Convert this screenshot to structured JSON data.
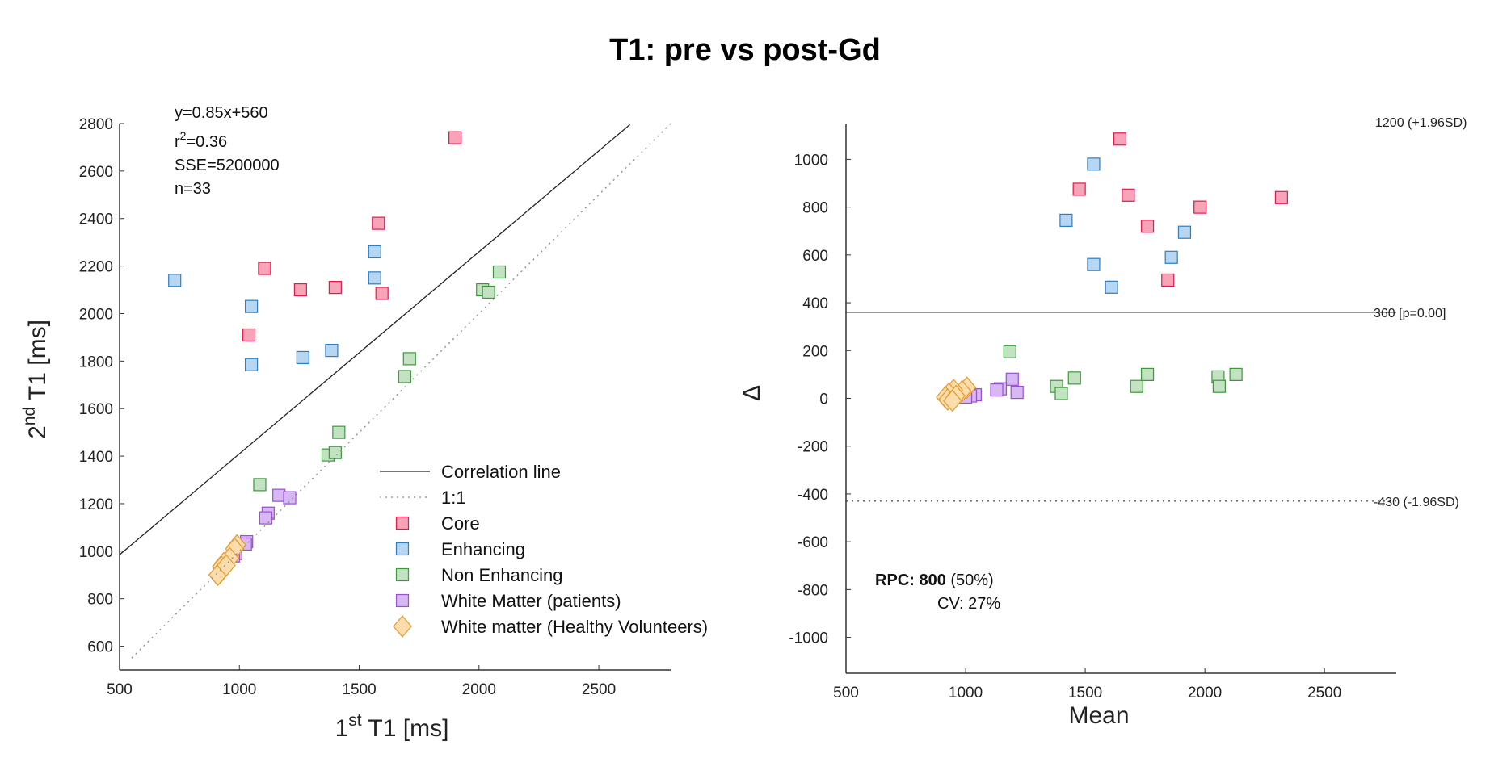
{
  "figure_title": "T1:  pre  vs  post-Gd",
  "colors": {
    "core": {
      "fill": "#f7a3b8",
      "stroke": "#e8174f"
    },
    "enhancing": {
      "fill": "#b7d6f2",
      "stroke": "#2d7fc4"
    },
    "non_enhancing": {
      "fill": "#c2e2c2",
      "stroke": "#3b9a3b"
    },
    "wm_patients": {
      "fill": "#d7b8f4",
      "stroke": "#9a4fd6"
    },
    "wm_healthy": {
      "fill": "#fbdcad",
      "stroke": "#e59a2b"
    }
  },
  "chart_data": [
    {
      "type": "scatter",
      "xlabel": "1st T1 [ms]",
      "ylabel": "2nd T1 [ms]",
      "xlim": [
        500,
        2800
      ],
      "ylim": [
        500,
        2800
      ],
      "xticks": [
        500,
        1000,
        1500,
        2000,
        2500
      ],
      "yticks": [
        600,
        800,
        1000,
        1200,
        1400,
        1600,
        1800,
        2000,
        2200,
        2400,
        2600,
        2800
      ],
      "stats": [
        "y=0.85x+560",
        "r2=0.36",
        "SSE=5200000",
        "n=33"
      ],
      "stats_display": {
        "line1": "y=0.85x+560",
        "r_base": "r",
        "r_sup": "2",
        "r_rest": "=0.36",
        "line3": "SSE=5200000",
        "line4": "n=33"
      },
      "correlation_line": {
        "slope": 0.85,
        "intercept": 560,
        "x_range": [
          500,
          2630
        ]
      },
      "identity_line": {
        "x_range": [
          550,
          2800
        ]
      },
      "legend": {
        "position": "bottom-right",
        "entries": [
          {
            "label": "Correlation line",
            "style": "solid-line"
          },
          {
            "label": "1:1",
            "style": "dotted-line"
          },
          {
            "label": "Core",
            "series": "core"
          },
          {
            "label": "Enhancing",
            "series": "enhancing"
          },
          {
            "label": "Non Enhancing",
            "series": "non_enhancing"
          },
          {
            "label": "White Matter (patients)",
            "series": "wm_patients"
          },
          {
            "label": "White matter (Healthy Volunteers)",
            "series": "wm_healthy"
          }
        ]
      },
      "series": [
        {
          "name": "Core",
          "key": "core",
          "marker": "square",
          "points": [
            [
              1900,
              2740
            ],
            [
              1580,
              2380
            ],
            [
              1105,
              2190
            ],
            [
              1255,
              2100
            ],
            [
              1400,
              2110
            ],
            [
              1595,
              2085
            ],
            [
              1040,
              1910
            ]
          ]
        },
        {
          "name": "Enhancing",
          "key": "enhancing",
          "marker": "square",
          "points": [
            [
              730,
              2140
            ],
            [
              1050,
              2030
            ],
            [
              1565,
              2260
            ],
            [
              1565,
              2150
            ],
            [
              1050,
              1785
            ],
            [
              1265,
              1815
            ],
            [
              1385,
              1845
            ]
          ]
        },
        {
          "name": "Non Enhancing",
          "key": "non_enhancing",
          "marker": "square",
          "points": [
            [
              2085,
              2175
            ],
            [
              2015,
              2100
            ],
            [
              2040,
              2090
            ],
            [
              1710,
              1810
            ],
            [
              1690,
              1735
            ],
            [
              1415,
              1500
            ],
            [
              1370,
              1405
            ],
            [
              1400,
              1415
            ],
            [
              1085,
              1280
            ]
          ]
        },
        {
          "name": "White Matter (patients)",
          "key": "wm_patients",
          "marker": "square",
          "points": [
            [
              1165,
              1235
            ],
            [
              1210,
              1225
            ],
            [
              1120,
              1160
            ],
            [
              1110,
              1140
            ],
            [
              1030,
              1040
            ],
            [
              1025,
              1030
            ],
            [
              985,
              990
            ],
            [
              975,
              980
            ]
          ]
        },
        {
          "name": "White matter (Healthy Volunteers)",
          "key": "wm_healthy",
          "marker": "diamond",
          "points": [
            [
              990,
              1025
            ],
            [
              980,
              1010
            ],
            [
              960,
              970
            ],
            [
              935,
              950
            ],
            [
              925,
              935
            ],
            [
              920,
              910
            ],
            [
              910,
              900
            ],
            [
              945,
              940
            ]
          ]
        }
      ]
    },
    {
      "type": "scatter",
      "xlabel": "Mean",
      "ylabel": "Δ",
      "xlim": [
        500,
        2800
      ],
      "ylim": [
        -1150,
        1150
      ],
      "xticks": [
        500,
        1000,
        1500,
        2000,
        2500
      ],
      "yticks": [
        -1000,
        -800,
        -600,
        -400,
        -200,
        0,
        200,
        400,
        600,
        800,
        1000
      ],
      "mean_line": {
        "value": 360,
        "label": "360 [p=0.00]"
      },
      "upper_loa": {
        "value": 1200,
        "label": "1200 (+1.96SD)"
      },
      "lower_loa": {
        "value": -430,
        "label": "-430 (-1.96SD)"
      },
      "rpc": {
        "label": "RPC: 800",
        "percent": " (50%)",
        "cv": "CV: 27%"
      },
      "series": [
        {
          "name": "Core",
          "key": "core",
          "marker": "square",
          "points": [
            [
              1645,
              1085
            ],
            [
              1475,
              875
            ],
            [
              1680,
              850
            ],
            [
              1980,
              800
            ],
            [
              2320,
              840
            ],
            [
              1760,
              720
            ],
            [
              1845,
              495
            ]
          ]
        },
        {
          "name": "Enhancing",
          "key": "enhancing",
          "marker": "square",
          "points": [
            [
              1535,
              980
            ],
            [
              1420,
              745
            ],
            [
              1915,
              695
            ],
            [
              1860,
              590
            ],
            [
              1535,
              560
            ],
            [
              1610,
              465
            ]
          ]
        },
        {
          "name": "Non Enhancing",
          "key": "non_enhancing",
          "marker": "square",
          "points": [
            [
              1185,
              195
            ],
            [
              1455,
              85
            ],
            [
              1380,
              50
            ],
            [
              1400,
              20
            ],
            [
              1715,
              50
            ],
            [
              1760,
              100
            ],
            [
              2055,
              90
            ],
            [
              2060,
              50
            ],
            [
              2130,
              100
            ]
          ]
        },
        {
          "name": "White Matter (patients)",
          "key": "wm_patients",
          "marker": "square",
          "points": [
            [
              1195,
              80
            ],
            [
              1145,
              40
            ],
            [
              1130,
              35
            ],
            [
              1215,
              25
            ],
            [
              1040,
              15
            ],
            [
              1020,
              10
            ],
            [
              1000,
              5
            ]
          ]
        },
        {
          "name": "White matter (Healthy Volunteers)",
          "key": "wm_healthy",
          "marker": "diamond",
          "points": [
            [
              1005,
              45
            ],
            [
              985,
              30
            ],
            [
              950,
              35
            ],
            [
              930,
              20
            ],
            [
              915,
              5
            ],
            [
              925,
              -5
            ],
            [
              960,
              10
            ],
            [
              945,
              -10
            ]
          ]
        }
      ]
    }
  ]
}
